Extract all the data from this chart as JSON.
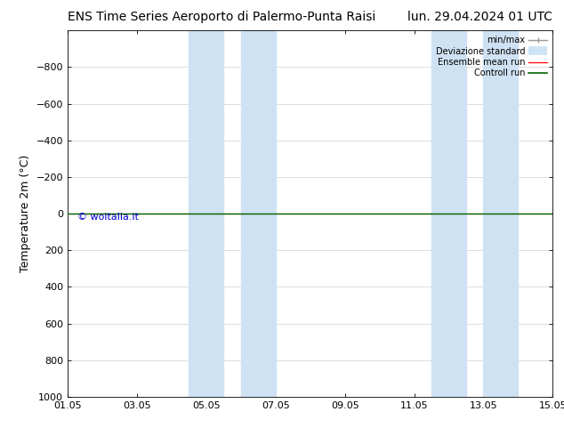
{
  "title_left": "ENS Time Series Aeroporto di Palermo-Punta Raisi",
  "title_right": "lun. 29.04.2024 01 UTC",
  "xlabel_ticks": [
    "01.05",
    "03.05",
    "05.05",
    "07.05",
    "09.05",
    "11.05",
    "13.05",
    "15.05"
  ],
  "ylabel": "Temperature 2m (°C)",
  "ylim": [
    -1000,
    1000
  ],
  "yticks": [
    -800,
    -600,
    -400,
    -200,
    0,
    200,
    400,
    600,
    800,
    1000
  ],
  "xlim": [
    0,
    14
  ],
  "xtick_positions": [
    0,
    2,
    4,
    6,
    8,
    10,
    12,
    14
  ],
  "shaded_bands": [
    {
      "xmin": 3.5,
      "xmax": 4.5
    },
    {
      "xmin": 5.0,
      "xmax": 6.0
    },
    {
      "xmin": 10.5,
      "xmax": 11.5
    },
    {
      "xmin": 12.0,
      "xmax": 13.0
    }
  ],
  "shaded_color": "#cfe2f3",
  "ensemble_mean_y": 0,
  "control_run_y": 0,
  "watermark": "© woitalia.it",
  "watermark_color": "#0000cc",
  "background_color": "#ffffff",
  "grid_color": "#d0d0d0",
  "legend_items": [
    {
      "label": "min/max",
      "color": "#aaaaaa",
      "lw": 1.2
    },
    {
      "label": "Deviazione standard",
      "color": "#d0e8f8",
      "lw": 7
    },
    {
      "label": "Ensemble mean run",
      "color": "#ff0000",
      "lw": 1.0
    },
    {
      "label": "Controll run",
      "color": "#006600",
      "lw": 1.5
    }
  ],
  "title_fontsize": 10,
  "tick_fontsize": 8,
  "ylabel_fontsize": 9
}
